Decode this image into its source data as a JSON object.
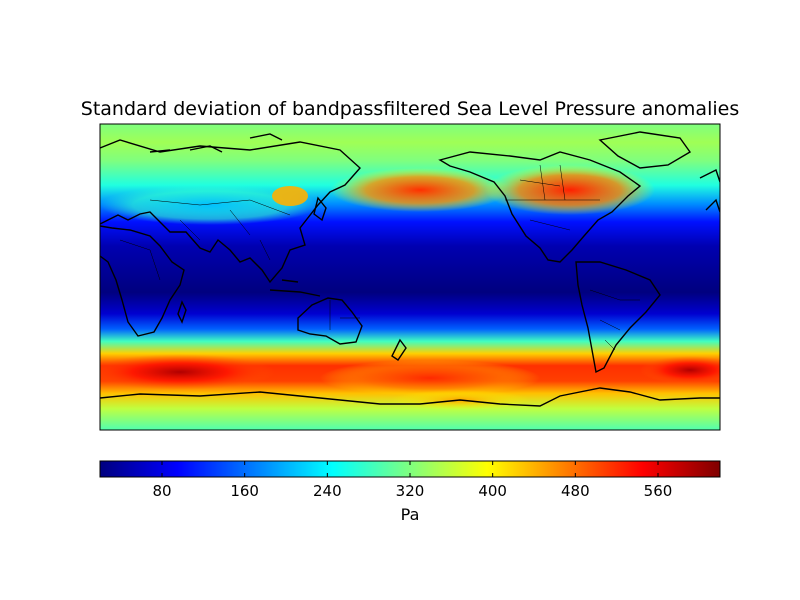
{
  "map": {
    "title": "Standard deviation of bandpassfiltered Sea Level Pressure anomalies",
    "projection": "cylindrical, centered on Pacific",
    "field": "standard deviation of bandpass-filtered sea level pressure anomalies",
    "colormap": "jet",
    "coastlines": true,
    "country_borders": true
  },
  "colorbar": {
    "label": "Pa",
    "range": [
      20,
      620
    ],
    "ticks": [
      {
        "value": 80,
        "label": "80"
      },
      {
        "value": 160,
        "label": "160"
      },
      {
        "value": 240,
        "label": "240"
      },
      {
        "value": 320,
        "label": "320"
      },
      {
        "value": 400,
        "label": "400"
      },
      {
        "value": 480,
        "label": "480"
      },
      {
        "value": 560,
        "label": "560"
      }
    ]
  },
  "colors": {
    "jet_stops": [
      "#00007f",
      "#0000ff",
      "#007fff",
      "#00ffff",
      "#7fff7f",
      "#ffff00",
      "#ff7f00",
      "#ff0000",
      "#7f0000"
    ]
  }
}
